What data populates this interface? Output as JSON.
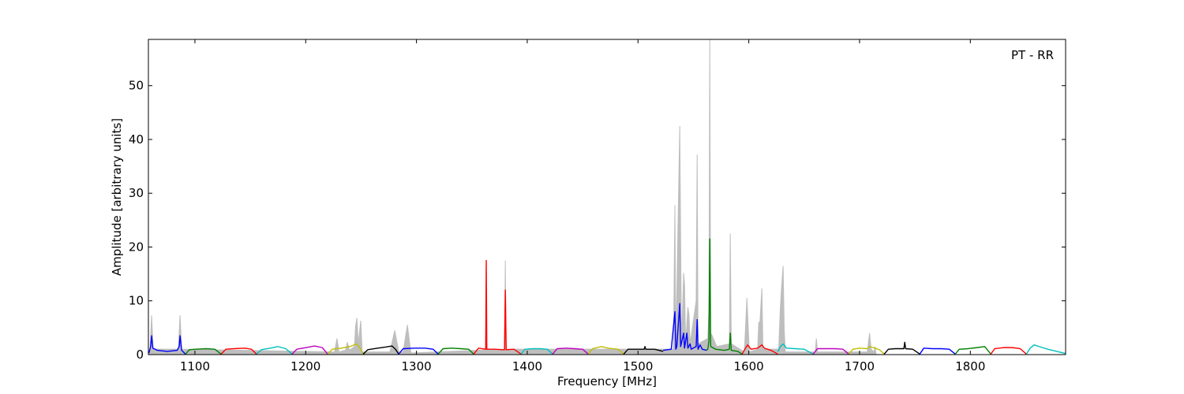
{
  "chart_data": {
    "type": "line",
    "xlabel": "Frequency [MHz]",
    "ylabel": "Amplitude [arbitrary units]",
    "annotation": "PT - RR",
    "xlim": [
      1058,
      1886
    ],
    "ylim": [
      0,
      58.6
    ],
    "xticks": [
      1100,
      1200,
      1300,
      1400,
      1500,
      1600,
      1700,
      1800
    ],
    "yticks": [
      0,
      10,
      20,
      30,
      40,
      50
    ],
    "grid": false,
    "series": [
      {
        "color": "#bebebe",
        "area": true,
        "x": [
          1058,
          1059.5,
          1060.9,
          1062.3,
          1085,
          1086.6,
          1088,
          1226,
          1228.3,
          1230,
          1236,
          1237.6,
          1239.5,
          1244,
          1245,
          1246.2,
          1247.5,
          1249.7,
          1251,
          1276,
          1280.4,
          1284,
          1288,
          1291.8,
          1295,
          1379.5,
          1380.2,
          1381,
          1532,
          1533.3,
          1534.1,
          1537.7,
          1538.5,
          1539.3,
          1541.2,
          1542,
          1543,
          1545,
          1546,
          1547,
          1552.5,
          1553.4,
          1554.2,
          1563,
          1564,
          1564.8,
          1565.6,
          1567,
          1569,
          1571,
          1582.5,
          1583.3,
          1584.2,
          1596,
          1598.3,
          1600.5,
          1608,
          1609,
          1610,
          1611.8,
          1612.8,
          1627,
          1628.5,
          1629.5,
          1631,
          1632,
          1633,
          1660,
          1661,
          1662,
          1707,
          1709,
          1710.5,
          1713,
          1714,
          1715,
          1886
        ],
        "values": [
          0,
          1,
          7.3,
          1,
          1,
          7.3,
          1,
          0.5,
          3,
          0.5,
          0.8,
          2.3,
          0.8,
          1.5,
          5.2,
          6.8,
          2,
          6.3,
          0.5,
          0.5,
          4.5,
          0.5,
          0.5,
          5.5,
          0.3,
          1,
          17.5,
          1,
          1,
          27.8,
          1,
          42.5,
          21,
          2,
          15.2,
          13,
          2,
          8.8,
          7.5,
          2,
          10,
          37.2,
          2,
          3,
          8.2,
          58.6,
          4,
          3.5,
          2.5,
          1.5,
          2,
          22.5,
          2,
          0.5,
          10.5,
          0.5,
          1,
          6,
          5.8,
          12.3,
          1,
          1,
          8.8,
          12.3,
          16.5,
          4.5,
          0.5,
          0.5,
          3,
          0.5,
          0.5,
          4,
          1,
          0.5,
          1.5,
          0,
          0
        ]
      },
      {
        "color": "#0000ff",
        "x": [
          1058.5,
          1060,
          1060.9,
          1062,
          1066,
          1075,
          1084,
          1085.8,
          1086.6,
          1088,
          1091.5
        ],
        "values": [
          0.3,
          1.5,
          3.5,
          1.2,
          0.8,
          0.6,
          0.8,
          1.5,
          3.5,
          0.8,
          0.1
        ]
      },
      {
        "color": "#008000",
        "x": [
          1091.5,
          1095,
          1100,
          1110,
          1118,
          1123.6
        ],
        "values": [
          0.1,
          0.9,
          1.0,
          1.1,
          1.0,
          0.1
        ]
      },
      {
        "color": "#ff0000",
        "x": [
          1123.6,
          1128,
          1135,
          1145,
          1151,
          1155.6
        ],
        "values": [
          0.1,
          1.0,
          1.1,
          1.2,
          1.0,
          0.1
        ]
      },
      {
        "color": "#00bfbf",
        "x": [
          1155.6,
          1160,
          1168,
          1175,
          1182,
          1187.7
        ],
        "values": [
          0.1,
          0.9,
          1.2,
          1.5,
          1.1,
          0.1
        ]
      },
      {
        "color": "#bf00bf",
        "x": [
          1187.7,
          1192,
          1200,
          1208,
          1215,
          1219.8
        ],
        "values": [
          0.1,
          1.0,
          1.3,
          1.6,
          1.3,
          0.1
        ]
      },
      {
        "color": "#bfbf00",
        "x": [
          1219.8,
          1224,
          1232,
          1240,
          1246,
          1249,
          1251.9
        ],
        "values": [
          0.1,
          1.0,
          1.2,
          1.5,
          2.0,
          1.2,
          0.1
        ]
      },
      {
        "color": "#000000",
        "x": [
          1251.9,
          1256,
          1265,
          1272,
          1278,
          1281,
          1284
        ],
        "values": [
          0.1,
          0.9,
          1.2,
          1.4,
          1.6,
          1.0,
          0.1
        ]
      },
      {
        "color": "#0000ff",
        "x": [
          1284,
          1288,
          1298,
          1308,
          1315,
          1319.6
        ],
        "values": [
          0.1,
          1.1,
          1.2,
          1.2,
          1.0,
          0.1
        ]
      },
      {
        "color": "#008000",
        "x": [
          1319.6,
          1324,
          1332,
          1340,
          1347,
          1351.7
        ],
        "values": [
          0.1,
          1.1,
          1.2,
          1.1,
          1.0,
          0.1
        ]
      },
      {
        "color": "#ff0000",
        "x": [
          1351.7,
          1356,
          1362.5,
          1363,
          1363.5,
          1370,
          1379.5,
          1380.2,
          1381,
          1388,
          1394.4
        ],
        "values": [
          0.1,
          1.2,
          1.0,
          17.5,
          1.0,
          1.0,
          0.9,
          12,
          0.9,
          1.0,
          0.1
        ]
      },
      {
        "color": "#00bfbf",
        "x": [
          1394.4,
          1398,
          1405,
          1412,
          1418,
          1422.9
        ],
        "values": [
          0.1,
          1.0,
          1.1,
          1.1,
          1.0,
          0.1
        ]
      },
      {
        "color": "#bf00bf",
        "x": [
          1422.9,
          1427,
          1435,
          1443,
          1450,
          1455
        ],
        "values": [
          0.1,
          1.1,
          1.2,
          1.1,
          1.0,
          0.1
        ]
      },
      {
        "color": "#bfbf00",
        "x": [
          1455,
          1459,
          1467,
          1473,
          1482,
          1487.1
        ],
        "values": [
          0.1,
          1.1,
          1.5,
          1.2,
          1.0,
          0.1
        ]
      },
      {
        "color": "#000000",
        "x": [
          1487.1,
          1491,
          1500,
          1505.5,
          1506.3,
          1507,
          1515,
          1522.7
        ],
        "values": [
          0.1,
          1.0,
          1.0,
          1.0,
          1.5,
          1.0,
          1.0,
          0.6
        ]
      },
      {
        "color": "#0000ff",
        "x": [
          1522.7,
          1530,
          1533.3,
          1534.1,
          1535,
          1537.7,
          1538.5,
          1541.2,
          1542,
          1544.1,
          1545,
          1547,
          1548,
          1552.5,
          1553.4,
          1554.2,
          1556,
          1558,
          1561.9
        ],
        "values": [
          0.8,
          1.0,
          8,
          1.0,
          1.5,
          9.5,
          1.5,
          4,
          1.2,
          4,
          1.2,
          2,
          1.0,
          1.5,
          6.5,
          1.0,
          1.8,
          1.0,
          0.8
        ]
      },
      {
        "color": "#008000",
        "x": [
          1561.9,
          1563,
          1564,
          1564.8,
          1565.6,
          1570,
          1578,
          1582.5,
          1583.3,
          1584.2,
          1590,
          1594
        ],
        "values": [
          0.8,
          1.0,
          2.5,
          21.5,
          1.5,
          1.0,
          0.8,
          1.0,
          4,
          0.8,
          0.6,
          0.1
        ]
      },
      {
        "color": "#ff0000",
        "x": [
          1594,
          1597,
          1599,
          1602,
          1608,
          1611.8,
          1614,
          1620,
          1626.1
        ],
        "values": [
          0.1,
          1.2,
          1.8,
          1.0,
          1.2,
          1.8,
          1.2,
          0.8,
          0.1
        ]
      },
      {
        "color": "#00bfbf",
        "x": [
          1626.1,
          1628.5,
          1631,
          1634,
          1642,
          1650,
          1658.1
        ],
        "values": [
          0.5,
          1.5,
          2.0,
          1.2,
          1.1,
          1.0,
          0.1
        ]
      },
      {
        "color": "#bf00bf",
        "x": [
          1658.1,
          1662,
          1670,
          1678,
          1685,
          1690.2
        ],
        "values": [
          0.1,
          1.1,
          1.1,
          1.1,
          1.0,
          0.1
        ]
      },
      {
        "color": "#bfbf00",
        "x": [
          1690.2,
          1694,
          1700,
          1707,
          1709,
          1714,
          1718,
          1722.3
        ],
        "values": [
          0.1,
          1.0,
          1.2,
          1.1,
          1.5,
          1.2,
          0.9,
          0.1
        ]
      },
      {
        "color": "#000000",
        "x": [
          1722.3,
          1726,
          1732,
          1740,
          1740.8,
          1741.6,
          1748,
          1754.4
        ],
        "values": [
          0.1,
          1.0,
          1.1,
          1.1,
          2.3,
          1.1,
          1.0,
          0.1
        ]
      },
      {
        "color": "#0000ff",
        "x": [
          1754.4,
          1758,
          1766,
          1774,
          1781,
          1786.4
        ],
        "values": [
          0.1,
          1.2,
          1.1,
          1.1,
          1.0,
          0.1
        ]
      },
      {
        "color": "#008000",
        "x": [
          1786.4,
          1790,
          1798,
          1806,
          1813,
          1818.5
        ],
        "values": [
          0.1,
          1.0,
          1.1,
          1.3,
          1.5,
          0.1
        ]
      },
      {
        "color": "#ff0000",
        "x": [
          1818.5,
          1822,
          1830,
          1838,
          1845,
          1850.6
        ],
        "values": [
          0.1,
          1.1,
          1.3,
          1.3,
          1.1,
          0.1
        ]
      },
      {
        "color": "#00bfbf",
        "x": [
          1850.6,
          1854,
          1857.7,
          1862,
          1870,
          1878,
          1886
        ],
        "values": [
          0.1,
          1.2,
          1.8,
          1.5,
          1.0,
          0.6,
          0.2
        ]
      }
    ]
  }
}
